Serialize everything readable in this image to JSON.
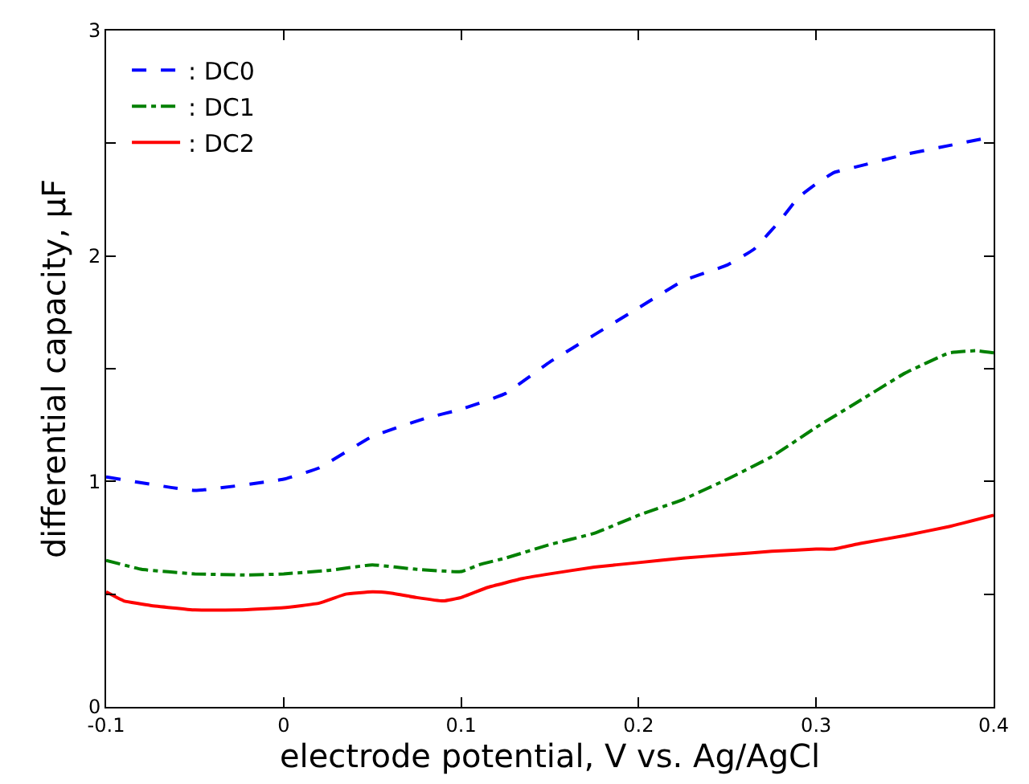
{
  "chart_data": {
    "type": "line",
    "xlabel": "electrode potential, V vs. Ag/AgCl",
    "ylabel": "differential capacity, μF",
    "xlim": [
      -0.1,
      0.4
    ],
    "xticks": [
      -0.1,
      0,
      0.1,
      0.2,
      0.3,
      0.4
    ],
    "ylim": [
      0,
      3
    ],
    "yticks": [
      0,
      {
        "value": 0.5,
        "label": null
      },
      1,
      {
        "value": 1.5,
        "label": null
      },
      2,
      {
        "value": 2.5,
        "label": null
      },
      3
    ],
    "legend": "top left",
    "marker": "none",
    "series": [
      {
        "name": ": DC0",
        "color": "#0000ff",
        "line_style": "dashed",
        "x": [
          -0.1,
          -0.05,
          0,
          0.02,
          0.05,
          0.08,
          0.1,
          0.125,
          0.15,
          0.175,
          0.2,
          0.225,
          0.25,
          0.265,
          0.28,
          0.29,
          0.3,
          0.31,
          0.325,
          0.35,
          0.375,
          0.4
        ],
        "values": [
          1.02,
          0.96,
          1.01,
          1.06,
          1.2,
          1.28,
          1.32,
          1.39,
          1.53,
          1.65,
          1.77,
          1.89,
          1.96,
          2.03,
          2.16,
          2.26,
          2.32,
          2.37,
          2.4,
          2.45,
          2.49,
          2.53
        ]
      },
      {
        "name": ": DC1",
        "color": "#008000",
        "line_style": "dashdot",
        "x": [
          -0.1,
          -0.08,
          -0.05,
          -0.02,
          0,
          0.025,
          0.05,
          0.075,
          0.1,
          0.11,
          0.125,
          0.15,
          0.175,
          0.2,
          0.225,
          0.25,
          0.275,
          0.3,
          0.325,
          0.35,
          0.375,
          0.39,
          0.4
        ],
        "values": [
          0.65,
          0.61,
          0.59,
          0.585,
          0.59,
          0.605,
          0.63,
          0.61,
          0.6,
          0.63,
          0.66,
          0.72,
          0.77,
          0.85,
          0.92,
          1.01,
          1.11,
          1.24,
          1.36,
          1.48,
          1.57,
          1.58,
          1.57
        ]
      },
      {
        "name": ": DC2",
        "color": "#ff0000",
        "line_style": "solid",
        "x": [
          -0.1,
          -0.09,
          -0.075,
          -0.05,
          -0.025,
          0,
          0.02,
          0.035,
          0.05,
          0.06,
          0.075,
          0.09,
          0.1,
          0.115,
          0.135,
          0.15,
          0.175,
          0.2,
          0.225,
          0.25,
          0.275,
          0.3,
          0.31,
          0.325,
          0.35,
          0.375,
          0.4
        ],
        "values": [
          0.51,
          0.47,
          0.45,
          0.43,
          0.43,
          0.44,
          0.46,
          0.5,
          0.51,
          0.505,
          0.485,
          0.47,
          0.485,
          0.53,
          0.57,
          0.59,
          0.62,
          0.64,
          0.66,
          0.675,
          0.69,
          0.7,
          0.7,
          0.725,
          0.76,
          0.8,
          0.85
        ]
      }
    ]
  }
}
